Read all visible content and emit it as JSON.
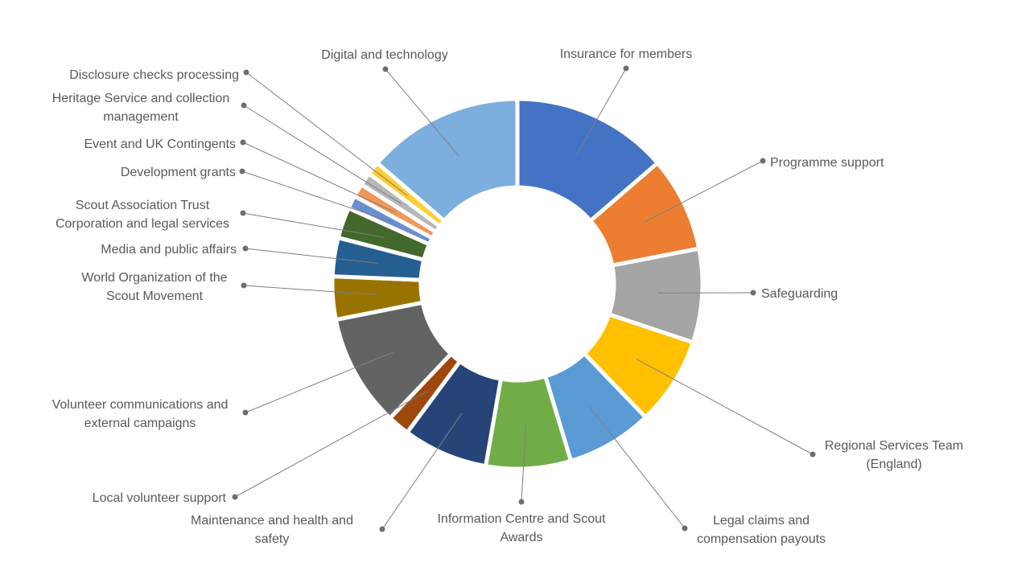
{
  "chart_data": {
    "type": "pie",
    "variant": "doughnut",
    "title": "",
    "legend": "none",
    "slices": [
      {
        "label": "Insurance for members",
        "value": 14.2,
        "color": "#4472c4"
      },
      {
        "label": "Programme  support",
        "value": 8.6,
        "color": "#ed7d31"
      },
      {
        "label": "Safeguarding",
        "value": 8.5,
        "color": "#a5a5a5"
      },
      {
        "label": "Regional Services Team (England)",
        "value": 8.0,
        "color": "#ffc000"
      },
      {
        "label": "Legal claims and compensation payouts",
        "value": 7.8,
        "color": "#5b9bd5"
      },
      {
        "label": "Information  Centre and Scout Awards",
        "value": 7.7,
        "color": "#70ad47"
      },
      {
        "label": "Maintenance and health and safety",
        "value": 7.7,
        "color": "#264478"
      },
      {
        "label": "Local volunteer support",
        "value": 2.0,
        "color": "#9e480e"
      },
      {
        "label": "Volunteer communications  and external campaigns",
        "value": 10.2,
        "color": "#636363"
      },
      {
        "label": "World Organization of the Scout Movement",
        "value": 3.9,
        "color": "#997300"
      },
      {
        "label": "Media and public affairs",
        "value": 3.5,
        "color": "#255e91"
      },
      {
        "label": "Scout Association Trust Corporation and legal services",
        "value": 2.8,
        "color": "#43682b"
      },
      {
        "label": "Development grants",
        "value": 1.2,
        "color": "#698ed0"
      },
      {
        "label": "Event and UK Contingents",
        "value": 1.2,
        "color": "#f1975a"
      },
      {
        "label": "Heritage Service and collection management",
        "value": 1.2,
        "color": "#b7b7b7"
      },
      {
        "label": "Disclosure checks processing",
        "value": 1.2,
        "color": "#ffcd33"
      },
      {
        "label": "Digital and technology",
        "value": 14.2,
        "color": "#7cafdd"
      }
    ]
  },
  "labels": [
    {
      "lines": [
        "Insurance for members"
      ]
    },
    {
      "lines": [
        "Programme  support"
      ]
    },
    {
      "lines": [
        "Safeguarding"
      ]
    },
    {
      "lines": [
        "Regional Services Team",
        "(England)"
      ]
    },
    {
      "lines": [
        "Legal claims and",
        "compensation payouts"
      ]
    },
    {
      "lines": [
        "Information  Centre and Scout",
        "Awards"
      ]
    },
    {
      "lines": [
        "Maintenance and health and",
        "safety"
      ]
    },
    {
      "lines": [
        "Local volunteer support"
      ]
    },
    {
      "lines": [
        "Volunteer communications  and",
        "external campaigns"
      ]
    },
    {
      "lines": [
        "World Organization of the",
        "Scout Movement"
      ]
    },
    {
      "lines": [
        "Media and public affairs"
      ]
    },
    {
      "lines": [
        "Scout Association Trust",
        "Corporation and legal services"
      ]
    },
    {
      "lines": [
        "Development grants"
      ]
    },
    {
      "lines": [
        "Event and UK Contingents"
      ]
    },
    {
      "lines": [
        "Heritage Service and collection",
        "management"
      ]
    },
    {
      "lines": [
        "Disclosure checks processing"
      ]
    },
    {
      "lines": [
        "Digital and technology"
      ]
    }
  ]
}
